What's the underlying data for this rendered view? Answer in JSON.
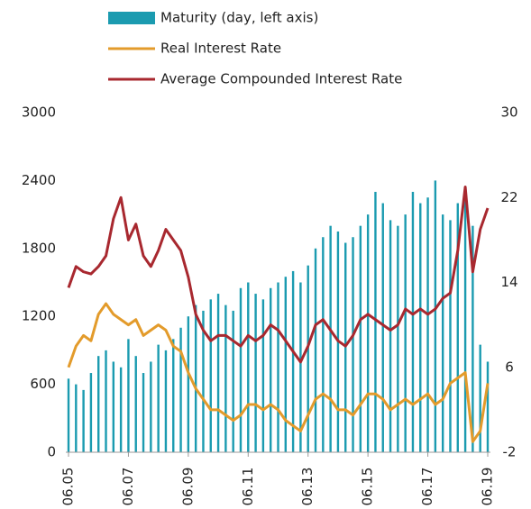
{
  "chart_data": {
    "type": "bar-line",
    "categories": [
      "06.05",
      null,
      null,
      null,
      null,
      null,
      null,
      null,
      "06.07",
      null,
      null,
      null,
      null,
      null,
      null,
      null,
      "06.09",
      null,
      null,
      null,
      null,
      null,
      null,
      null,
      "06.11",
      null,
      null,
      null,
      null,
      null,
      null,
      null,
      "06.13",
      null,
      null,
      null,
      null,
      null,
      null,
      null,
      "06.15",
      null,
      null,
      null,
      null,
      null,
      null,
      null,
      "06.17",
      null,
      null,
      null,
      null,
      null,
      null,
      null,
      "06.19"
    ],
    "series": [
      {
        "name": "Maturity (day, left axis)",
        "color": "#1b9bb0",
        "axis": "y",
        "values": [
          650,
          600,
          550,
          700,
          850,
          900,
          800,
          750,
          1000,
          850,
          700,
          800,
          950,
          900,
          1000,
          1100,
          1200,
          1300,
          1250,
          1350,
          1400,
          1300,
          1250,
          1450,
          1500,
          1400,
          1350,
          1450,
          1500,
          1550,
          1600,
          1500,
          1650,
          1800,
          1900,
          2000,
          1950,
          1850,
          1900,
          2000,
          2100,
          2300,
          2200,
          2050,
          2000,
          2100,
          2300,
          2200,
          2250,
          2400,
          2100,
          2050,
          2200,
          2300,
          2000,
          950,
          800
        ]
      },
      {
        "name": "Real Interest Rate",
        "color": "#e39b2b",
        "axis": "y2",
        "values": [
          6,
          8,
          9,
          8.5,
          11,
          12,
          11,
          10.5,
          10,
          10.5,
          9,
          9.5,
          10,
          9.5,
          8,
          7.5,
          5.5,
          4,
          3,
          2,
          2,
          1.5,
          1,
          1.5,
          2.5,
          2.5,
          2,
          2.5,
          2,
          1,
          0.5,
          0,
          1.5,
          3,
          3.5,
          3,
          2,
          2,
          1.5,
          2.5,
          3.5,
          3.5,
          3,
          2,
          2.5,
          3,
          2.5,
          3,
          3.5,
          2.5,
          3,
          4.5,
          5,
          5.5,
          -1,
          0,
          4.5
        ]
      },
      {
        "name": "Average Compounded Interest Rate",
        "color": "#a8282f",
        "axis": "y2",
        "values": [
          13.5,
          15.5,
          15,
          14.8,
          15.5,
          16.5,
          20,
          22,
          18,
          19.5,
          16.5,
          15.5,
          17,
          19,
          18,
          17,
          14.5,
          11,
          9.5,
          8.5,
          9,
          9,
          8.5,
          8,
          9,
          8.5,
          9,
          10,
          9.5,
          8.5,
          7.5,
          6.5,
          8,
          10,
          10.5,
          9.5,
          8.5,
          8,
          9,
          10.5,
          11,
          10.5,
          10,
          9.5,
          10,
          11.5,
          11,
          11.5,
          11,
          11.5,
          12.5,
          13,
          17,
          23,
          15,
          19,
          21
        ]
      }
    ],
    "ylim": [
      0,
      3000
    ],
    "yticks": [
      0,
      600,
      1200,
      1800,
      2400,
      3000
    ],
    "y2lim": [
      -2,
      30
    ],
    "y2ticks": [
      -2,
      6,
      14,
      22,
      30
    ]
  }
}
